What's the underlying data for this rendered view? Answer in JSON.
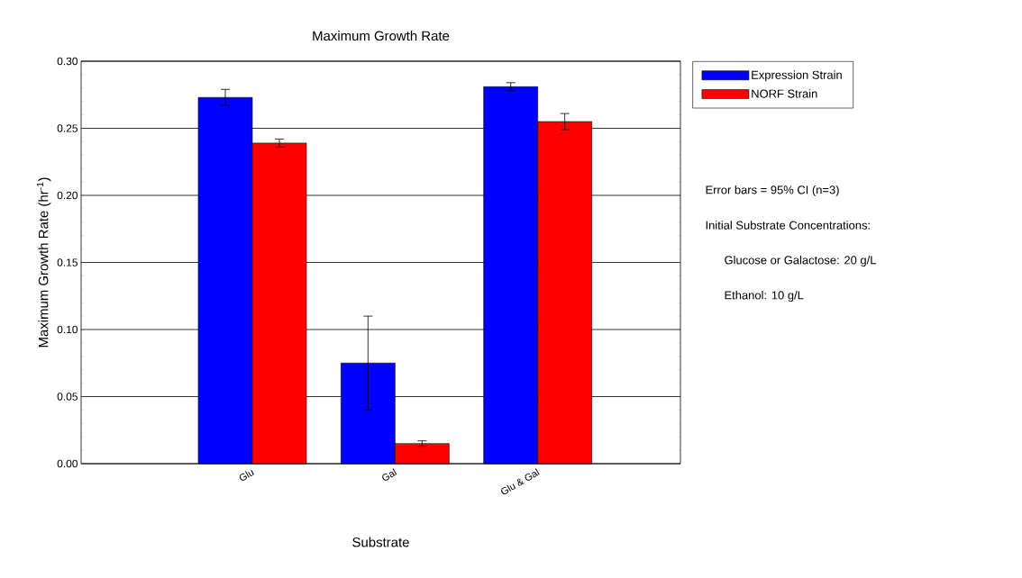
{
  "chart_data": {
    "type": "bar",
    "title": "Maximum Growth Rate",
    "xlabel": "Substrate",
    "ylabel": "Maximum Growth Rate (hr$^{-1}$)",
    "categories": [
      "Glu",
      "Gal",
      "Glu & Gal"
    ],
    "series": [
      {
        "name": "Expression Strain",
        "color": "#0000ff",
        "values": [
          0.273,
          0.075,
          0.281
        ],
        "errors": [
          0.006,
          0.035,
          0.003
        ]
      },
      {
        "name": "NORF Strain",
        "color": "#ff0000",
        "values": [
          0.239,
          0.015,
          0.255
        ],
        "errors": [
          0.003,
          0.002,
          0.006
        ]
      }
    ],
    "ylim": [
      0,
      0.3
    ],
    "yticks": [
      {
        "value": 0,
        "label": "0.00"
      },
      {
        "value": 0.05,
        "label": "0.05"
      },
      {
        "value": 0.1,
        "label": "0.10"
      },
      {
        "value": 0.15,
        "label": "0.15"
      },
      {
        "value": 0.2,
        "label": "0.20"
      },
      {
        "value": 0.25,
        "label": "0.25"
      },
      {
        "value": 0.3,
        "label": "0.30"
      }
    ],
    "grid": "y",
    "legend": "top right",
    "annotations": [
      "Error bars = 95% CI (n=3)",
      "Initial Substrate Concentrations:",
      "Glucose or Galactose: 20 g/L",
      "Ethanol: 10 g/L"
    ]
  }
}
